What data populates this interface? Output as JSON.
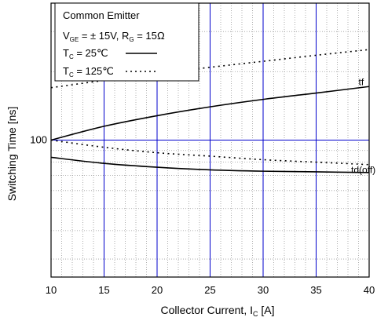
{
  "chart_data": {
    "type": "line",
    "xlabel": "Collector Current, I",
    "xlabel_sub": "C",
    "xlabel_unit": " [A]",
    "ylabel": "Switching Time [ns]",
    "xlim": [
      10,
      40
    ],
    "x_ticks": [
      10,
      15,
      20,
      25,
      30,
      35,
      40
    ],
    "ylim": [
      25,
      400
    ],
    "y_scale": "log",
    "y_ticks": [
      100
    ],
    "grid": true,
    "legend": {
      "position": "top-left",
      "title": "Common Emitter",
      "condition_parts": [
        "V",
        "GE",
        " = ± 15V, R",
        "G",
        " = 15Ω"
      ],
      "entries": [
        {
          "prefix": "T",
          "sub": "C",
          "text": " =   25℃",
          "style": "solid"
        },
        {
          "prefix": "T",
          "sub": "C",
          "text": " = 125℃",
          "style": "dotted"
        }
      ]
    },
    "series": [
      {
        "name": "tf",
        "temperature": "25℃",
        "style": "solid",
        "x": [
          10,
          15,
          20,
          25,
          30,
          35,
          40
        ],
        "values": [
          100,
          115,
          128,
          140,
          151,
          161,
          172
        ]
      },
      {
        "name": "tf",
        "temperature": "125℃",
        "style": "dotted",
        "x": [
          10,
          15,
          20,
          25,
          30,
          35,
          40
        ],
        "values": [
          170,
          183,
          196,
          209,
          222,
          236,
          250
        ]
      },
      {
        "name": "td(off)",
        "temperature": "25℃",
        "style": "solid",
        "x": [
          10,
          15,
          20,
          25,
          30,
          35,
          40
        ],
        "values": [
          84,
          79,
          76,
          74,
          73,
          72.5,
          72
        ]
      },
      {
        "name": "td(off)",
        "temperature": "125℃",
        "style": "dotted",
        "x": [
          10,
          15,
          20,
          25,
          30,
          35,
          40
        ],
        "values": [
          100,
          93,
          88,
          85,
          82,
          80,
          78
        ]
      }
    ],
    "series_labels": [
      {
        "text": "tf",
        "x": 39,
        "y": 180
      },
      {
        "text": "td(off)",
        "x": 38.3,
        "y": 74
      }
    ]
  },
  "colors": {
    "major_grid": "#0000cc",
    "minor_grid": "#9a9a9a",
    "lines": "#000000"
  }
}
